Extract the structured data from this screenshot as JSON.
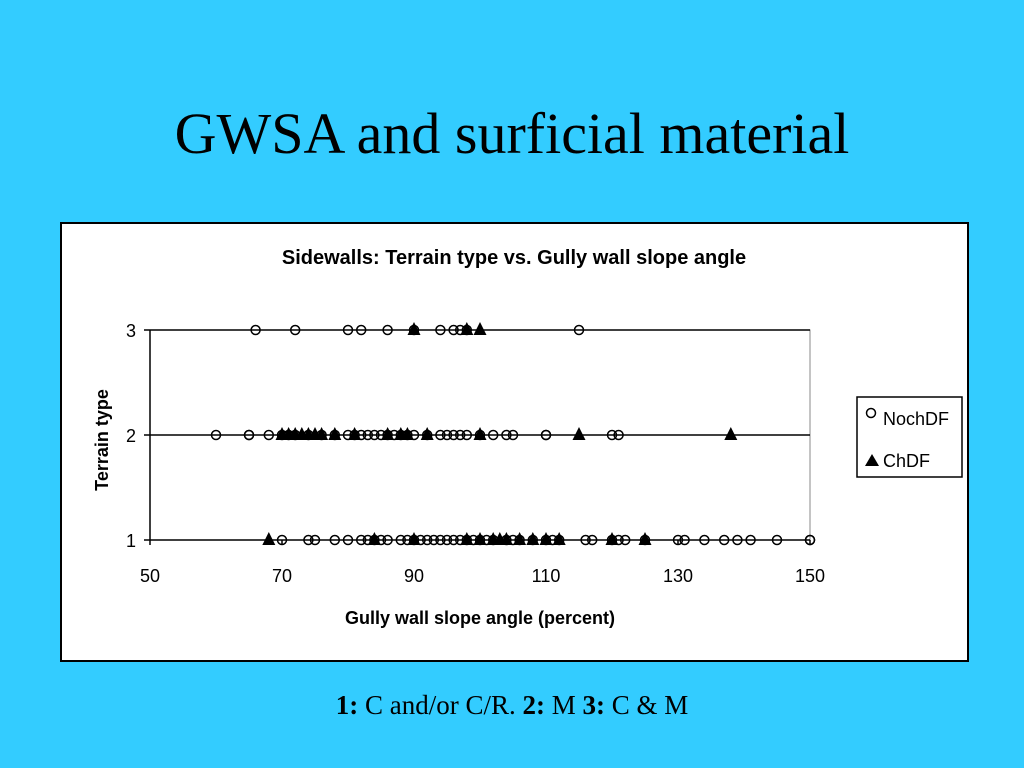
{
  "slide": {
    "title": "GWSA and surficial material",
    "caption": {
      "k1": "1:",
      "v1": " C and/or C/R. ",
      "k2": "2:",
      "v2": " M ",
      "k3": "3:",
      "v3": " C & M"
    }
  },
  "colors": {
    "background": "#33ccff",
    "plot_area": "#ffffff",
    "markers": "#000000"
  },
  "chart_data": {
    "type": "scatter",
    "title": "Sidewalls: Terrain type vs. Gully wall slope angle",
    "xlabel": "Gully wall slope angle (percent)",
    "ylabel": "Terrain type",
    "xlim": [
      50,
      150
    ],
    "ylim": [
      1,
      3
    ],
    "xticks": [
      "50",
      "70",
      "90",
      "110",
      "130",
      "150"
    ],
    "yticks": [
      "1",
      "2",
      "3"
    ],
    "grid": "horizontal",
    "legend_position": "right",
    "series": [
      {
        "name": "NochDF",
        "marker": "circle-open",
        "points": [
          [
            66,
            3
          ],
          [
            72,
            3
          ],
          [
            80,
            3
          ],
          [
            82,
            3
          ],
          [
            86,
            3
          ],
          [
            90,
            3
          ],
          [
            94,
            3
          ],
          [
            96,
            3
          ],
          [
            97,
            3
          ],
          [
            98,
            3
          ],
          [
            115,
            3
          ],
          [
            60,
            2
          ],
          [
            65,
            2
          ],
          [
            65,
            2
          ],
          [
            68,
            2
          ],
          [
            70,
            2
          ],
          [
            71,
            2
          ],
          [
            72,
            2
          ],
          [
            74,
            2
          ],
          [
            76,
            2
          ],
          [
            78,
            2
          ],
          [
            80,
            2
          ],
          [
            81,
            2
          ],
          [
            82,
            2
          ],
          [
            83,
            2
          ],
          [
            84,
            2
          ],
          [
            85,
            2
          ],
          [
            86,
            2
          ],
          [
            87,
            2
          ],
          [
            88,
            2
          ],
          [
            89,
            2
          ],
          [
            90,
            2
          ],
          [
            92,
            2
          ],
          [
            94,
            2
          ],
          [
            95,
            2
          ],
          [
            96,
            2
          ],
          [
            97,
            2
          ],
          [
            98,
            2
          ],
          [
            100,
            2
          ],
          [
            102,
            2
          ],
          [
            104,
            2
          ],
          [
            105,
            2
          ],
          [
            110,
            2
          ],
          [
            110,
            2
          ],
          [
            120,
            2
          ],
          [
            121,
            2
          ],
          [
            70,
            1
          ],
          [
            74,
            1
          ],
          [
            75,
            1
          ],
          [
            78,
            1
          ],
          [
            80,
            1
          ],
          [
            82,
            1
          ],
          [
            83,
            1
          ],
          [
            84,
            1
          ],
          [
            85,
            1
          ],
          [
            86,
            1
          ],
          [
            88,
            1
          ],
          [
            89,
            1
          ],
          [
            90,
            1
          ],
          [
            91,
            1
          ],
          [
            92,
            1
          ],
          [
            93,
            1
          ],
          [
            94,
            1
          ],
          [
            95,
            1
          ],
          [
            96,
            1
          ],
          [
            97,
            1
          ],
          [
            98,
            1
          ],
          [
            99,
            1
          ],
          [
            100,
            1
          ],
          [
            101,
            1
          ],
          [
            102,
            1
          ],
          [
            104,
            1
          ],
          [
            105,
            1
          ],
          [
            106,
            1
          ],
          [
            108,
            1
          ],
          [
            110,
            1
          ],
          [
            111,
            1
          ],
          [
            112,
            1
          ],
          [
            116,
            1
          ],
          [
            117,
            1
          ],
          [
            120,
            1
          ],
          [
            121,
            1
          ],
          [
            122,
            1
          ],
          [
            125,
            1
          ],
          [
            130,
            1
          ],
          [
            131,
            1
          ],
          [
            134,
            1
          ],
          [
            137,
            1
          ],
          [
            139,
            1
          ],
          [
            141,
            1
          ],
          [
            145,
            1
          ],
          [
            150,
            1
          ],
          [
            150,
            1
          ]
        ]
      },
      {
        "name": "ChDF",
        "marker": "triangle-filled",
        "points": [
          [
            90,
            3
          ],
          [
            98,
            3
          ],
          [
            100,
            3
          ],
          [
            70,
            2
          ],
          [
            71,
            2
          ],
          [
            72,
            2
          ],
          [
            73,
            2
          ],
          [
            74,
            2
          ],
          [
            75,
            2
          ],
          [
            76,
            2
          ],
          [
            78,
            2
          ],
          [
            81,
            2
          ],
          [
            86,
            2
          ],
          [
            88,
            2
          ],
          [
            89,
            2
          ],
          [
            92,
            2
          ],
          [
            100,
            2
          ],
          [
            115,
            2
          ],
          [
            138,
            2
          ],
          [
            68,
            1
          ],
          [
            84,
            1
          ],
          [
            90,
            1
          ],
          [
            98,
            1
          ],
          [
            100,
            1
          ],
          [
            102,
            1
          ],
          [
            103,
            1
          ],
          [
            104,
            1
          ],
          [
            106,
            1
          ],
          [
            108,
            1
          ],
          [
            110,
            1
          ],
          [
            112,
            1
          ],
          [
            120,
            1
          ],
          [
            125,
            1
          ]
        ]
      }
    ]
  }
}
